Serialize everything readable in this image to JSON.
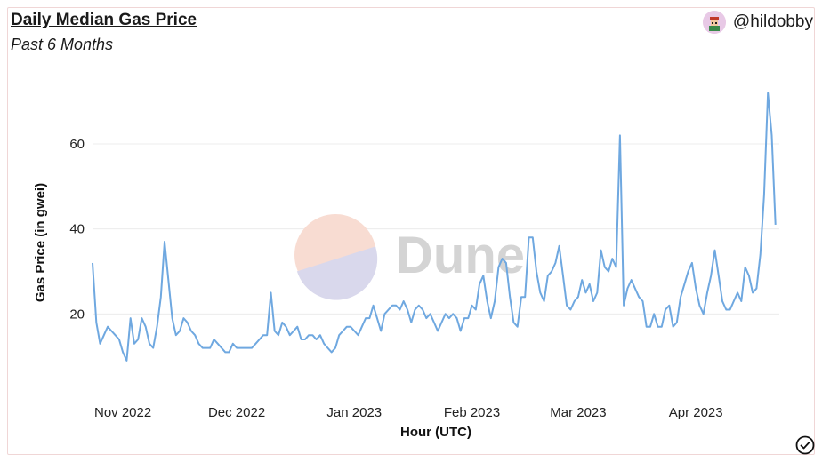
{
  "header": {
    "title": "Daily Median Gas Price",
    "subtitle": "Past 6 Months",
    "user_handle": "@hildobby"
  },
  "watermark": {
    "text": "Dune"
  },
  "colors": {
    "line": "#6fa8e0",
    "grid": "#ececec",
    "border": "#f0d6d6"
  },
  "icons": {
    "avatar": "user-avatar-icon",
    "check": "checkmark-circle-icon"
  },
  "chart_data": {
    "type": "line",
    "title": "Daily Median Gas Price",
    "subtitle": "Past 6 Months",
    "xlabel": "Hour (UTC)",
    "ylabel": "Gas Price (in gwei)",
    "ylim": [
      0,
      74
    ],
    "yticks": [
      20,
      40,
      60
    ],
    "xlim": [
      "2022-10-24",
      "2023-04-23"
    ],
    "xticks": [
      {
        "date": "2022-11-01",
        "label": "Nov 2022"
      },
      {
        "date": "2022-12-01",
        "label": "Dec 2022"
      },
      {
        "date": "2023-01-01",
        "label": "Jan 2023"
      },
      {
        "date": "2023-02-01",
        "label": "Feb 2023"
      },
      {
        "date": "2023-03-01",
        "label": "Mar 2023"
      },
      {
        "date": "2023-04-01",
        "label": "Apr 2023"
      }
    ],
    "grid": true,
    "series": [
      {
        "x_start": "2022-10-24",
        "x_step_days": 1,
        "values": [
          32,
          18,
          13,
          15,
          17,
          16,
          15,
          14,
          11,
          9,
          19,
          13,
          14,
          19,
          17,
          13,
          12,
          17,
          24,
          37,
          28,
          19,
          15,
          16,
          19,
          18,
          16,
          15,
          13,
          12,
          12,
          12,
          14,
          13,
          12,
          11,
          11,
          13,
          12,
          12,
          12,
          12,
          12,
          13,
          14,
          15,
          15,
          25,
          16,
          15,
          18,
          17,
          15,
          16,
          17,
          14,
          14,
          15,
          15,
          14,
          15,
          13,
          12,
          11,
          12,
          15,
          16,
          17,
          17,
          16,
          15,
          17,
          19,
          19,
          22,
          19,
          16,
          20,
          21,
          22,
          22,
          21,
          23,
          21,
          18,
          21,
          22,
          21,
          19,
          20,
          18,
          16,
          18,
          20,
          19,
          20,
          19,
          16,
          19,
          19,
          22,
          21,
          27,
          29,
          23,
          19,
          23,
          31,
          33,
          32,
          24,
          18,
          17,
          24,
          24,
          38,
          38,
          30,
          25,
          23,
          29,
          30,
          32,
          36,
          29,
          22,
          21,
          23,
          24,
          28,
          25,
          27,
          23,
          25,
          35,
          31,
          30,
          33,
          31,
          62,
          22,
          26,
          28,
          26,
          24,
          23,
          17,
          17,
          20,
          17,
          17,
          21,
          22,
          17,
          18,
          24,
          27,
          30,
          32,
          26,
          22,
          20,
          25,
          29,
          35,
          29,
          23,
          21,
          21,
          23,
          25,
          23,
          31,
          29,
          25,
          26,
          34,
          48,
          72,
          62,
          41
        ]
      }
    ]
  }
}
